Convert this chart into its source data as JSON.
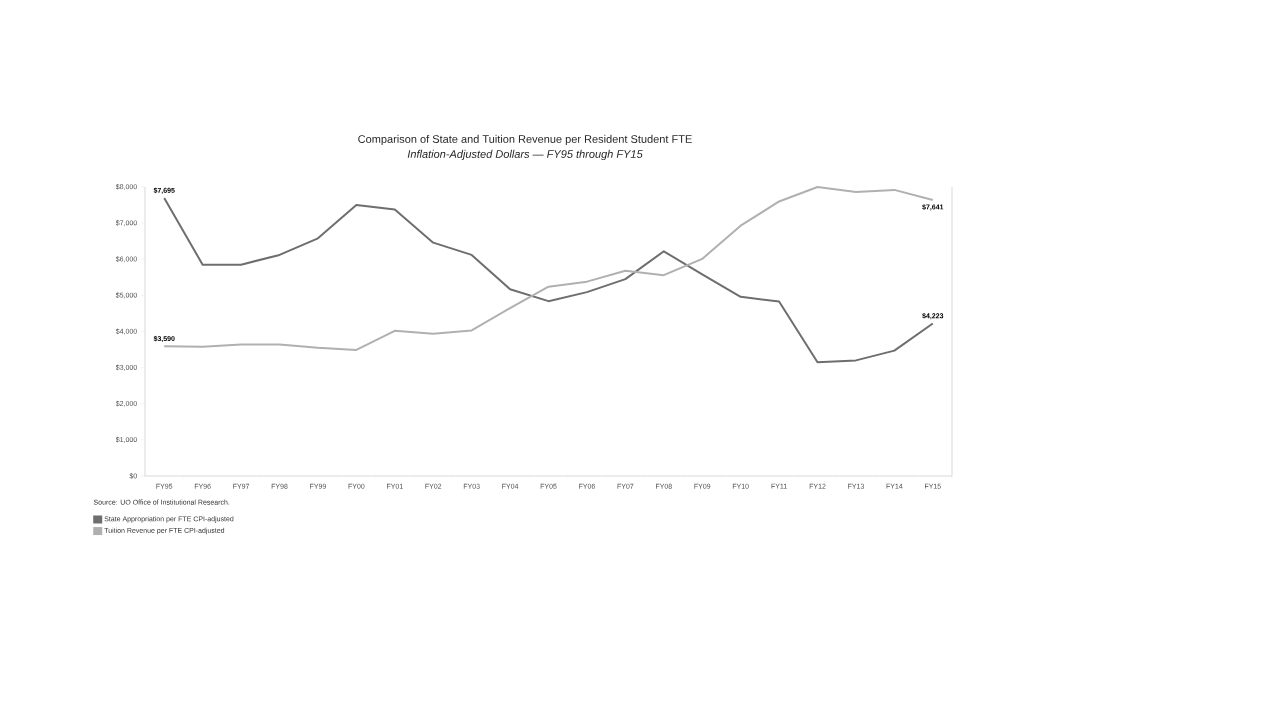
{
  "chart_data": {
    "type": "line",
    "title": "Comparison of State and Tuition Revenue per Resident Student FTE",
    "subtitle": "Inflation-Adjusted Dollars — FY95 through FY15",
    "categories": [
      "FY95",
      "FY96",
      "FY97",
      "FY98",
      "FY99",
      "FY00",
      "FY01",
      "FY02",
      "FY03",
      "FY04",
      "FY05",
      "FY06",
      "FY07",
      "FY08",
      "FY09",
      "FY10",
      "FY11",
      "FY12",
      "FY13",
      "FY14",
      "FY15"
    ],
    "series": [
      {
        "name": "State Appropriation per FTE CPI-adjusted",
        "color": "#6e6e6e",
        "values": [
          7695,
          5850,
          5850,
          6120,
          6580,
          7500,
          7380,
          6460,
          6120,
          5170,
          4840,
          5090,
          5450,
          6220,
          5580,
          4960,
          4830,
          3150,
          3200,
          3470,
          4223
        ],
        "value_labels": [
          "$7,695",
          null,
          null,
          null,
          null,
          null,
          null,
          null,
          null,
          null,
          null,
          null,
          null,
          null,
          null,
          null,
          null,
          null,
          null,
          null,
          "$4,223"
        ]
      },
      {
        "name": "Tuition Revenue per FTE CPI-adjusted",
        "color": "#b0b0b0",
        "values": [
          3590,
          3580,
          3640,
          3640,
          3550,
          3490,
          4020,
          3940,
          4030,
          4650,
          5240,
          5380,
          5680,
          5560,
          6010,
          6930,
          7600,
          8000,
          7860,
          7920,
          7641
        ],
        "value_labels": [
          "$3,590",
          null,
          null,
          null,
          null,
          null,
          null,
          null,
          null,
          null,
          null,
          null,
          null,
          null,
          null,
          null,
          null,
          null,
          null,
          null,
          "$7,641"
        ]
      }
    ],
    "ylim": [
      0,
      8000
    ],
    "yticks": [
      {
        "value": 0,
        "label": "$0"
      },
      {
        "value": 1000,
        "label": "$1,000"
      },
      {
        "value": 2000,
        "label": "$2,000"
      },
      {
        "value": 3000,
        "label": "$3,000"
      },
      {
        "value": 4000,
        "label": "$4,000"
      },
      {
        "value": 5000,
        "label": "$5,000"
      },
      {
        "value": 6000,
        "label": "$6,000"
      },
      {
        "value": 7000,
        "label": "$7,000"
      },
      {
        "value": 8000,
        "label": "$8,000"
      }
    ],
    "annotations": [
      "Source: UO Office of Institutional Research."
    ],
    "grid": false,
    "legend": "bottom left",
    "marker": "none",
    "line_style": "solid"
  }
}
